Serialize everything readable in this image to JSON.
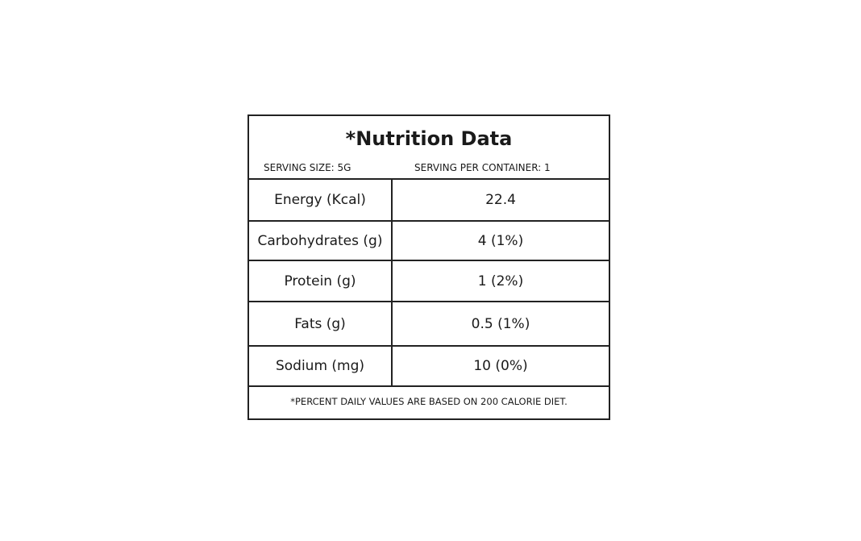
{
  "header": {
    "title": "*Nutrition Data",
    "serving_size": "SERVING SIZE: 5G",
    "servings_per_container": "SERVING PER CONTAINER: 1"
  },
  "table": {
    "rows": [
      [
        "Energy (Kcal)",
        "22.4"
      ],
      [
        "Carbohydrates (g)",
        "4 (1%)"
      ],
      [
        "Protein (g)",
        "1 (2%)"
      ],
      [
        "Fats (g)",
        "0.5 (1%)"
      ],
      [
        "Sodium (mg)",
        "10 (0%)"
      ]
    ]
  },
  "footer": {
    "note": "*PERCENT DAILY VALUES ARE BASED ON 200 CALORIE DIET."
  }
}
